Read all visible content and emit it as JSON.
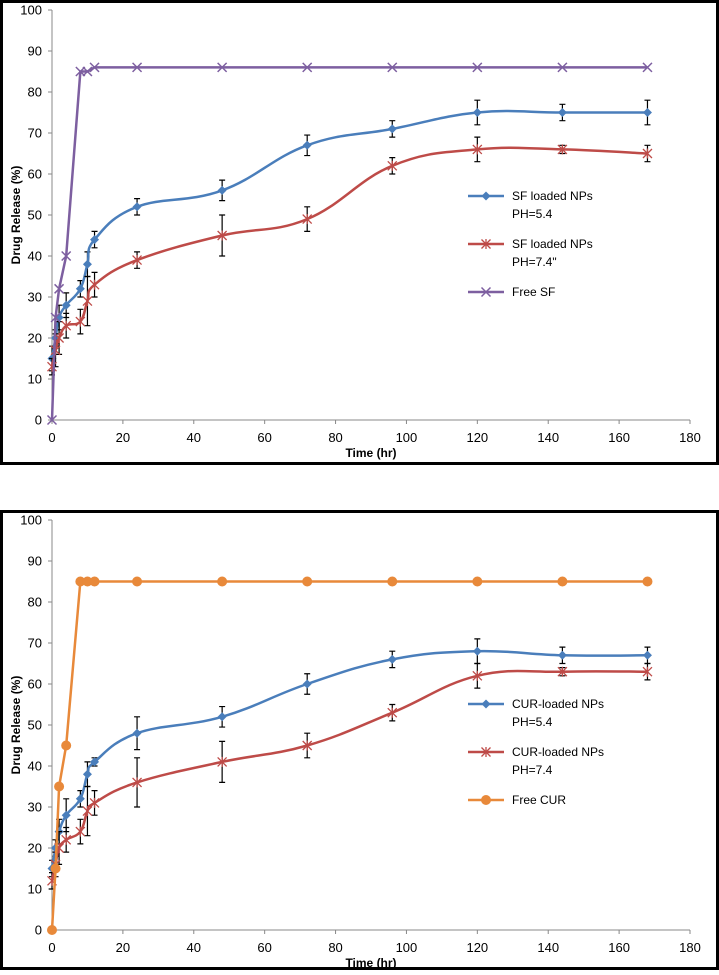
{
  "chart_data": [
    {
      "type": "line",
      "title": "",
      "xlabel": "Time (hr)",
      "ylabel": "Drug Release (%)",
      "xlim": [
        0,
        180
      ],
      "ylim": [
        0,
        100
      ],
      "x_ticks": [
        "0",
        "20",
        "40",
        "60",
        "80",
        "100",
        "120",
        "140",
        "160",
        "180"
      ],
      "y_ticks": [
        "0",
        "10",
        "20",
        "30",
        "40",
        "50",
        "60",
        "70",
        "80",
        "90",
        "100"
      ],
      "legend_position": "right-middle",
      "series": [
        {
          "name": "SF loaded NPs PH=5.4",
          "legend_lines": [
            "SF loaded NPs",
            "PH=5.4"
          ],
          "color": "#4a7ebb",
          "marker": "diamond",
          "smooth": true,
          "x": [
            0,
            1,
            2,
            4,
            8,
            10,
            12,
            24,
            48,
            72,
            96,
            120,
            144,
            168
          ],
          "y": [
            15,
            20,
            25,
            28,
            32,
            38,
            44,
            52,
            56,
            67,
            71,
            75,
            75,
            75
          ],
          "err": [
            3,
            2,
            3,
            3,
            2,
            3,
            2,
            2,
            2.5,
            2.5,
            2,
            3,
            2,
            3
          ]
        },
        {
          "name": "SF loaded NPs PH=7.4\"",
          "legend_lines": [
            "SF loaded NPs",
            "PH=7.4\""
          ],
          "color": "#be4b48",
          "marker": "star",
          "smooth": true,
          "x": [
            0,
            1,
            2,
            4,
            8,
            10,
            12,
            24,
            48,
            72,
            96,
            120,
            144,
            168
          ],
          "y": [
            13,
            17,
            20,
            23,
            24,
            29,
            33,
            39,
            45,
            49,
            62,
            66,
            66,
            65
          ],
          "err": [
            2,
            4,
            4,
            3,
            3,
            6,
            3,
            2,
            5,
            3,
            2,
            3,
            1,
            2
          ]
        },
        {
          "name": "Free SF",
          "legend_lines": [
            "Free SF"
          ],
          "color": "#7d5fa0",
          "marker": "x",
          "smooth": false,
          "x": [
            0,
            1,
            2,
            4,
            8,
            10,
            12,
            24,
            48,
            72,
            96,
            120,
            144,
            168
          ],
          "y": [
            0,
            25,
            32,
            40,
            85,
            85,
            86,
            86,
            86,
            86,
            86,
            86,
            86,
            86
          ],
          "err": []
        }
      ]
    },
    {
      "type": "line",
      "title": "",
      "xlabel": "Time (hr)",
      "ylabel": "Drug Release (%)",
      "xlim": [
        0,
        180
      ],
      "ylim": [
        0,
        100
      ],
      "x_ticks": [
        "0",
        "20",
        "40",
        "60",
        "80",
        "100",
        "120",
        "140",
        "160",
        "180"
      ],
      "y_ticks": [
        "0",
        "10",
        "20",
        "30",
        "40",
        "50",
        "60",
        "70",
        "80",
        "90",
        "100"
      ],
      "legend_position": "right-middle",
      "series": [
        {
          "name": "CUR-loaded NPs PH=5.4",
          "legend_lines": [
            "CUR-loaded NPs",
            "PH=5.4"
          ],
          "color": "#4a7ebb",
          "marker": "diamond",
          "smooth": true,
          "x": [
            0,
            1,
            2,
            4,
            8,
            10,
            12,
            24,
            48,
            72,
            96,
            120,
            144,
            168
          ],
          "y": [
            15,
            20,
            24,
            28,
            32,
            38,
            41,
            48,
            52,
            60,
            66,
            68,
            67,
            67
          ],
          "err": [
            2,
            2,
            3,
            4,
            2,
            3,
            1,
            4,
            2.5,
            2.5,
            2,
            3,
            2,
            2
          ]
        },
        {
          "name": "CUR-loaded NPs PH=7.4",
          "legend_lines": [
            "CUR-loaded NPs",
            "PH=7.4"
          ],
          "color": "#be4b48",
          "marker": "star",
          "smooth": true,
          "x": [
            0,
            1,
            2,
            4,
            8,
            10,
            12,
            24,
            48,
            72,
            96,
            120,
            144,
            168
          ],
          "y": [
            12,
            16,
            20,
            22,
            24,
            29,
            31,
            36,
            41,
            45,
            53,
            62,
            63,
            63
          ],
          "err": [
            2,
            3,
            4,
            3,
            3,
            6,
            3,
            6,
            5,
            3,
            2,
            3,
            1,
            2
          ]
        },
        {
          "name": "Free CUR",
          "legend_lines": [
            "Free CUR"
          ],
          "color": "#e8893a",
          "marker": "circle",
          "smooth": false,
          "x": [
            0,
            1,
            2,
            4,
            8,
            10,
            12,
            24,
            48,
            72,
            96,
            120,
            144,
            168
          ],
          "y": [
            0,
            15,
            35,
            45,
            85,
            85,
            85,
            85,
            85,
            85,
            85,
            85,
            85,
            85
          ],
          "err": []
        }
      ]
    }
  ]
}
